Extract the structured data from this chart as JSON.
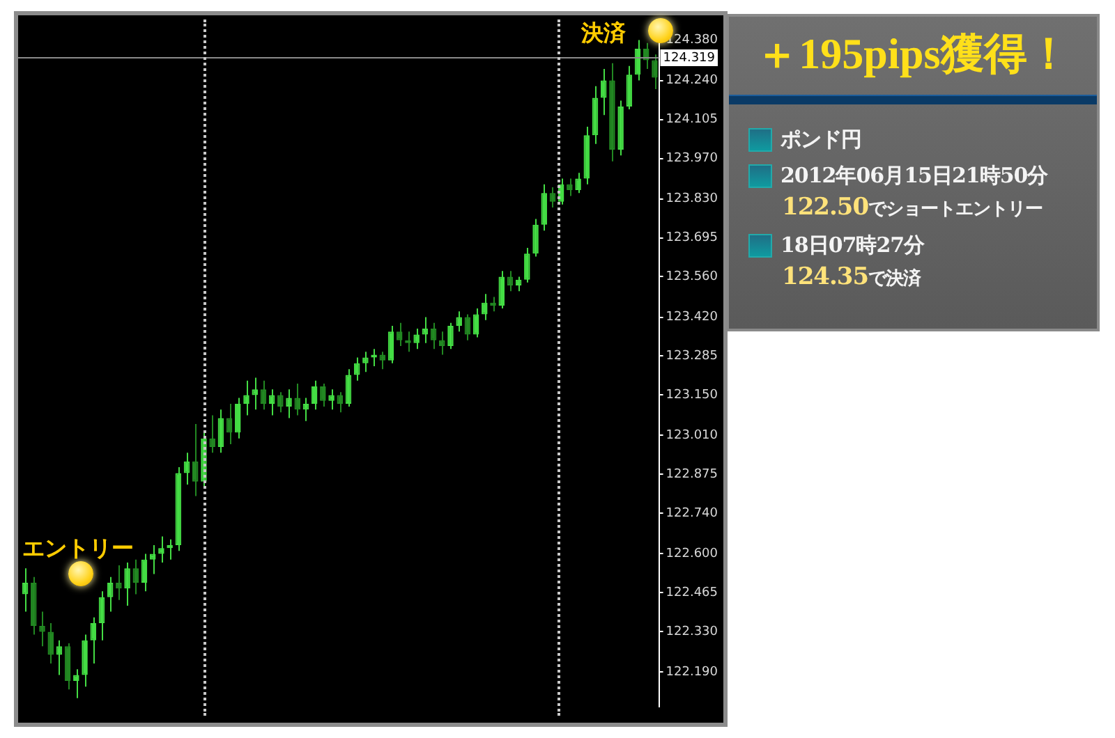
{
  "chart_data": {
    "type": "candlestick",
    "title": "＋195pips獲得！",
    "colors": [
      "#44dd44",
      "#228822",
      "#228822",
      "#228822",
      "#44dd44",
      "#228822",
      "#44dd44",
      "#44dd44",
      "#44dd44",
      "#44dd44",
      "#44dd44",
      "#228822",
      "#44dd44",
      "#228822",
      "#44dd44",
      "#44dd44",
      "#44dd44",
      "#44dd44",
      "#44dd44",
      "#44dd44",
      "#228822",
      "#44dd44",
      "#228822",
      "#44dd44",
      "#228822",
      "#44dd44",
      "#44dd44",
      "#44dd44",
      "#228822",
      "#44dd44",
      "#228822",
      "#44dd44",
      "#228822",
      "#44dd44",
      "#44dd44",
      "#228822",
      "#44dd44",
      "#228822",
      "#44dd44",
      "#44dd44",
      "#44dd44",
      "#44dd44",
      "#228822",
      "#44dd44",
      "#228822",
      "#228822",
      "#44dd44",
      "#44dd44",
      "#228822",
      "#228822",
      "#44dd44",
      "#44dd44",
      "#228822",
      "#44dd44",
      "#44dd44",
      "#228822",
      "#44dd44",
      "#228822",
      "#44dd44",
      "#44dd44",
      "#44dd44",
      "#44dd44",
      "#228822",
      "#44dd44",
      "#228822",
      "#44dd44",
      "#44dd44",
      "#44dd44",
      "#44dd44",
      "#228822",
      "#44dd44",
      "#44dd44",
      "#44dd44",
      "#228822",
      "#228822"
    ],
    "categories": [
      null,
      null,
      null,
      null,
      null,
      null,
      null,
      null,
      null,
      null,
      null,
      null,
      null,
      null,
      null,
      null,
      null,
      null,
      null,
      null,
      null,
      null,
      null,
      null,
      null,
      null,
      null,
      null,
      null,
      null,
      null,
      null,
      null,
      null,
      null,
      null,
      null,
      null,
      null,
      null,
      null,
      null,
      null,
      null,
      null,
      null,
      null,
      null,
      null,
      null,
      null,
      null,
      null,
      null,
      null,
      null,
      null,
      null,
      null,
      null,
      null,
      null,
      null,
      null,
      null,
      null,
      null,
      null,
      null,
      null,
      null,
      null,
      null,
      null,
      null
    ],
    "ohlc": [
      [
        122.46,
        122.55,
        122.4,
        122.5
      ],
      [
        122.5,
        122.52,
        122.32,
        122.35
      ],
      [
        122.35,
        122.4,
        122.28,
        122.33
      ],
      [
        122.33,
        122.36,
        122.22,
        122.25
      ],
      [
        122.25,
        122.3,
        122.18,
        122.28
      ],
      [
        122.28,
        122.29,
        122.13,
        122.16
      ],
      [
        122.16,
        122.2,
        122.1,
        122.18
      ],
      [
        122.18,
        122.32,
        122.14,
        122.3
      ],
      [
        122.3,
        122.38,
        122.22,
        122.36
      ],
      [
        122.36,
        122.47,
        122.3,
        122.45
      ],
      [
        122.45,
        122.52,
        122.4,
        122.5
      ],
      [
        122.5,
        122.56,
        122.44,
        122.48
      ],
      [
        122.48,
        122.57,
        122.42,
        122.55
      ],
      [
        122.55,
        122.58,
        122.46,
        122.5
      ],
      [
        122.5,
        122.6,
        122.47,
        122.58
      ],
      [
        122.58,
        122.63,
        122.53,
        122.6
      ],
      [
        122.6,
        122.66,
        122.57,
        122.62
      ],
      [
        122.62,
        122.65,
        122.58,
        122.63
      ],
      [
        122.63,
        122.9,
        122.61,
        122.88
      ],
      [
        122.88,
        122.95,
        122.84,
        122.92
      ],
      [
        122.92,
        123.05,
        122.8,
        122.85
      ],
      [
        122.85,
        123.02,
        122.83,
        123.0
      ],
      [
        123.0,
        123.08,
        122.95,
        122.97
      ],
      [
        122.97,
        123.1,
        122.95,
        123.07
      ],
      [
        123.07,
        123.12,
        122.98,
        123.02
      ],
      [
        123.02,
        123.14,
        123.0,
        123.12
      ],
      [
        123.12,
        123.2,
        123.08,
        123.15
      ],
      [
        123.15,
        123.21,
        123.1,
        123.17
      ],
      [
        123.17,
        123.2,
        123.1,
        123.12
      ],
      [
        123.12,
        123.17,
        123.08,
        123.15
      ],
      [
        123.15,
        123.16,
        123.09,
        123.11
      ],
      [
        123.11,
        123.17,
        123.07,
        123.14
      ],
      [
        123.14,
        123.19,
        123.08,
        123.1
      ],
      [
        123.1,
        123.14,
        123.06,
        123.12
      ],
      [
        123.12,
        123.2,
        123.1,
        123.18
      ],
      [
        123.18,
        123.19,
        123.11,
        123.13
      ],
      [
        123.13,
        123.17,
        123.1,
        123.15
      ],
      [
        123.15,
        123.16,
        123.09,
        123.12
      ],
      [
        123.12,
        123.24,
        123.11,
        123.22
      ],
      [
        123.22,
        123.28,
        123.2,
        123.26
      ],
      [
        123.26,
        123.3,
        123.23,
        123.28
      ],
      [
        123.28,
        123.31,
        123.25,
        123.29
      ],
      [
        123.29,
        123.3,
        123.24,
        123.27
      ],
      [
        123.27,
        123.39,
        123.26,
        123.37
      ],
      [
        123.37,
        123.4,
        123.32,
        123.34
      ],
      [
        123.34,
        123.37,
        123.3,
        123.33
      ],
      [
        123.33,
        123.38,
        123.31,
        123.36
      ],
      [
        123.36,
        123.42,
        123.33,
        123.38
      ],
      [
        123.38,
        123.4,
        123.31,
        123.34
      ],
      [
        123.34,
        123.37,
        123.29,
        123.32
      ],
      [
        123.32,
        123.4,
        123.31,
        123.39
      ],
      [
        123.39,
        123.44,
        123.37,
        123.42
      ],
      [
        123.42,
        123.43,
        123.34,
        123.36
      ],
      [
        123.36,
        123.45,
        123.35,
        123.43
      ],
      [
        123.43,
        123.5,
        123.41,
        123.47
      ],
      [
        123.47,
        123.49,
        123.44,
        123.46
      ],
      [
        123.46,
        123.58,
        123.45,
        123.56
      ],
      [
        123.56,
        123.58,
        123.51,
        123.53
      ],
      [
        123.53,
        123.56,
        123.51,
        123.55
      ],
      [
        123.55,
        123.66,
        123.54,
        123.64
      ],
      [
        123.64,
        123.76,
        123.63,
        123.74
      ],
      [
        123.74,
        123.88,
        123.72,
        123.85
      ],
      [
        123.85,
        123.87,
        123.8,
        123.82
      ],
      [
        123.82,
        123.9,
        123.81,
        123.88
      ],
      [
        123.88,
        123.9,
        123.84,
        123.86
      ],
      [
        123.86,
        123.92,
        123.85,
        123.9
      ],
      [
        123.9,
        124.08,
        123.88,
        124.05
      ],
      [
        124.05,
        124.22,
        124.02,
        124.18
      ],
      [
        124.18,
        124.28,
        124.12,
        124.24
      ],
      [
        124.24,
        124.3,
        123.96,
        124.0
      ],
      [
        124.0,
        124.17,
        123.98,
        124.15
      ],
      [
        124.15,
        124.29,
        124.14,
        124.26
      ],
      [
        124.26,
        124.38,
        124.24,
        124.35
      ],
      [
        124.35,
        124.37,
        124.28,
        124.31
      ],
      [
        124.31,
        124.33,
        124.21,
        124.25
      ]
    ],
    "ylim": [
      122.07,
      124.43
    ],
    "yticks": [
      {
        "value": 122.19,
        "label": "122.190"
      },
      {
        "value": 122.33,
        "label": "122.330"
      },
      122.465,
      {
        "value": 122.6,
        "label": "122.600"
      },
      {
        "value": 122.74,
        "label": "122.740"
      },
      122.875,
      {
        "value": 123.01,
        "label": "123.010"
      },
      {
        "value": 123.15,
        "label": "123.150"
      },
      123.285,
      {
        "value": 123.42,
        "label": "123.420"
      },
      {
        "value": 123.56,
        "label": "123.560"
      },
      123.695,
      {
        "value": 123.83,
        "label": "123.830"
      },
      {
        "value": 123.97,
        "label": "123.970"
      },
      124.105,
      {
        "value": 124.24,
        "label": "124.240"
      },
      {
        "value": 124.38,
        "label": "124.380"
      }
    ],
    "ref_lines": [
      {
        "axis": "y",
        "value": 124.319,
        "label": "124.319",
        "color": "#8a8a8a"
      }
    ],
    "tick_labels": "y",
    "grid": false,
    "legend": false,
    "annotations": [
      "エントリー",
      "決済",
      "ポンド円",
      "2012年06月15日21時50分",
      "122.50でショートエントリー",
      "18日07時27分",
      "124.35で決済"
    ]
  }
}
